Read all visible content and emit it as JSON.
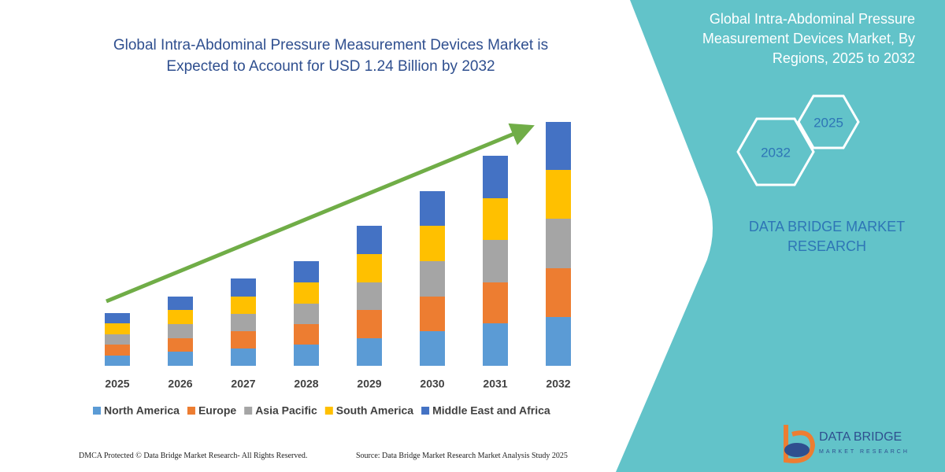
{
  "chart_data": {
    "type": "bar",
    "stacked": true,
    "title": "Global Intra-Abdominal Pressure Measurement Devices Market is Expected to Account for USD 1.24 Billion by 2032",
    "categories": [
      "2025",
      "2026",
      "2027",
      "2028",
      "2029",
      "2030",
      "2031",
      "2032"
    ],
    "series": [
      {
        "name": "North America",
        "color": "#5b9bd5",
        "values": [
          13,
          18,
          22,
          27,
          35,
          44,
          54,
          62
        ]
      },
      {
        "name": "Europe",
        "color": "#ed7d31",
        "values": [
          14,
          17,
          22,
          26,
          36,
          44,
          52,
          62
        ]
      },
      {
        "name": "Asia Pacific",
        "color": "#a5a5a5",
        "values": [
          13,
          18,
          22,
          26,
          35,
          45,
          54,
          63
        ]
      },
      {
        "name": "South America",
        "color": "#ffc000",
        "values": [
          14,
          18,
          22,
          27,
          36,
          45,
          53,
          62
        ]
      },
      {
        "name": "Middle East and Africa",
        "color": "#4472c4",
        "values": [
          13,
          17,
          23,
          27,
          36,
          44,
          54,
          61
        ]
      }
    ],
    "legend": "bottom"
  },
  "side_panel": {
    "title": "Global Intra-Abdominal Pressure Measurement Devices Market, By Regions, 2025 to 2032",
    "hexagons": [
      "2025",
      "2032"
    ],
    "brand": "DATA BRIDGE MARKET RESEARCH"
  },
  "logo": {
    "name": "DATA BRIDGE",
    "tagline": "MARKET RESEARCH"
  },
  "footer": {
    "left": "DMCA Protected © Data Bridge Market Research-  All Rights Reserved.",
    "right": "Source: Data Bridge Market Research  Market Analysis Study 2025"
  }
}
